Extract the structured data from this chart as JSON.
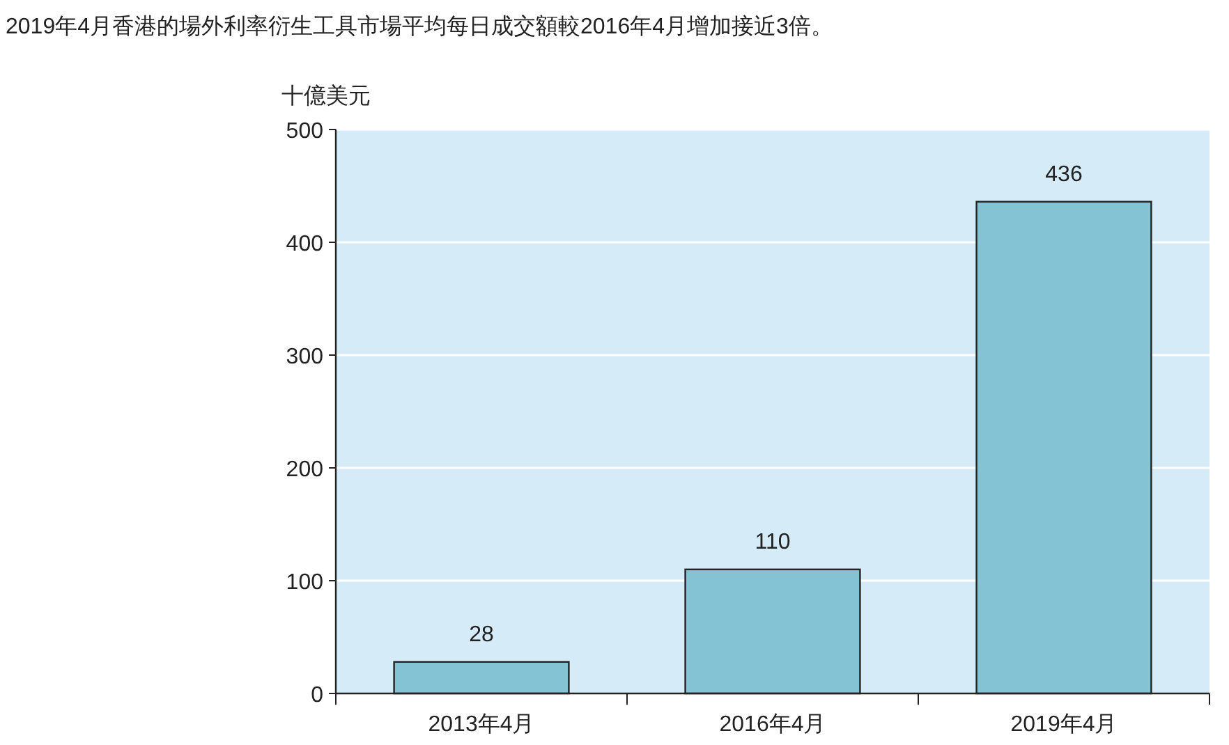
{
  "chart_data": {
    "type": "bar",
    "title": "2019年4月香港的場外利率衍生工具市場平均每日成交額較2016年4月增加接近3倍。",
    "ylabel": "十億美元",
    "categories": [
      "2013年4月",
      "2016年4月",
      "2019年4月"
    ],
    "values": [
      28,
      110,
      436
    ],
    "color": "#84c3d4",
    "ylim": [
      0,
      500
    ],
    "yticks": [
      0,
      100,
      200,
      300,
      400,
      500
    ],
    "grid": "y",
    "data_labels": true
  }
}
